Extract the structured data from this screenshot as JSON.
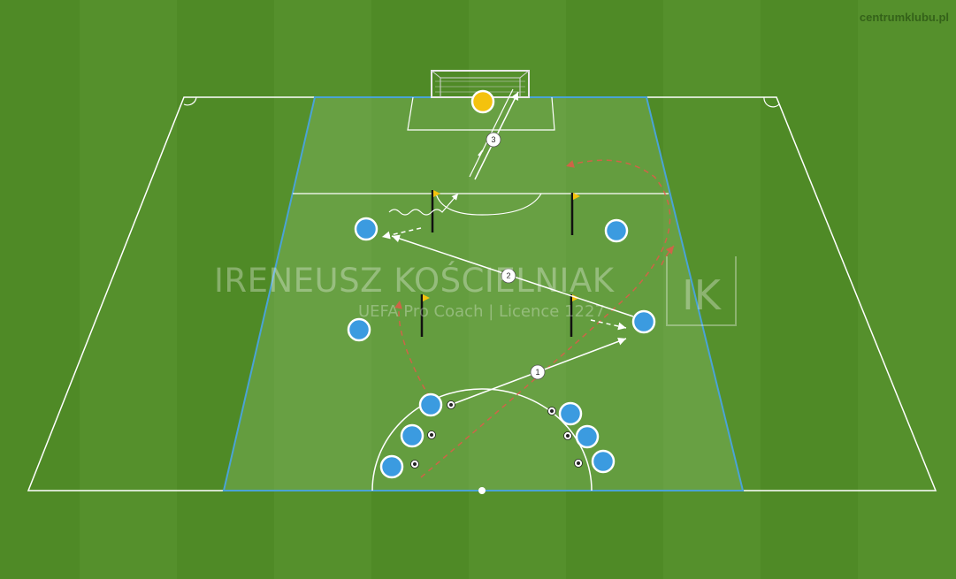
{
  "brand": {
    "site": "centrumklubu.pl"
  },
  "watermark": {
    "name": "IRENEUSZ KOŚCIELNIAK",
    "subtitle": "UEFA Pro Coach   |   Licence 1227",
    "logo_letters": "IK"
  },
  "pass_labels": {
    "first": "1",
    "second": "2",
    "third": "3"
  },
  "colors": {
    "grass_light": "#5f9a2e",
    "grass_dark": "#4f8a26",
    "zone_fill": "#7fb06a",
    "zone_border": "#4aa3d6",
    "player_blue": "#3b9be0",
    "goalkeeper_yellow": "#f4c20d",
    "run_line_red": "#e8564a",
    "flag_yellow": "#f4c20d"
  }
}
